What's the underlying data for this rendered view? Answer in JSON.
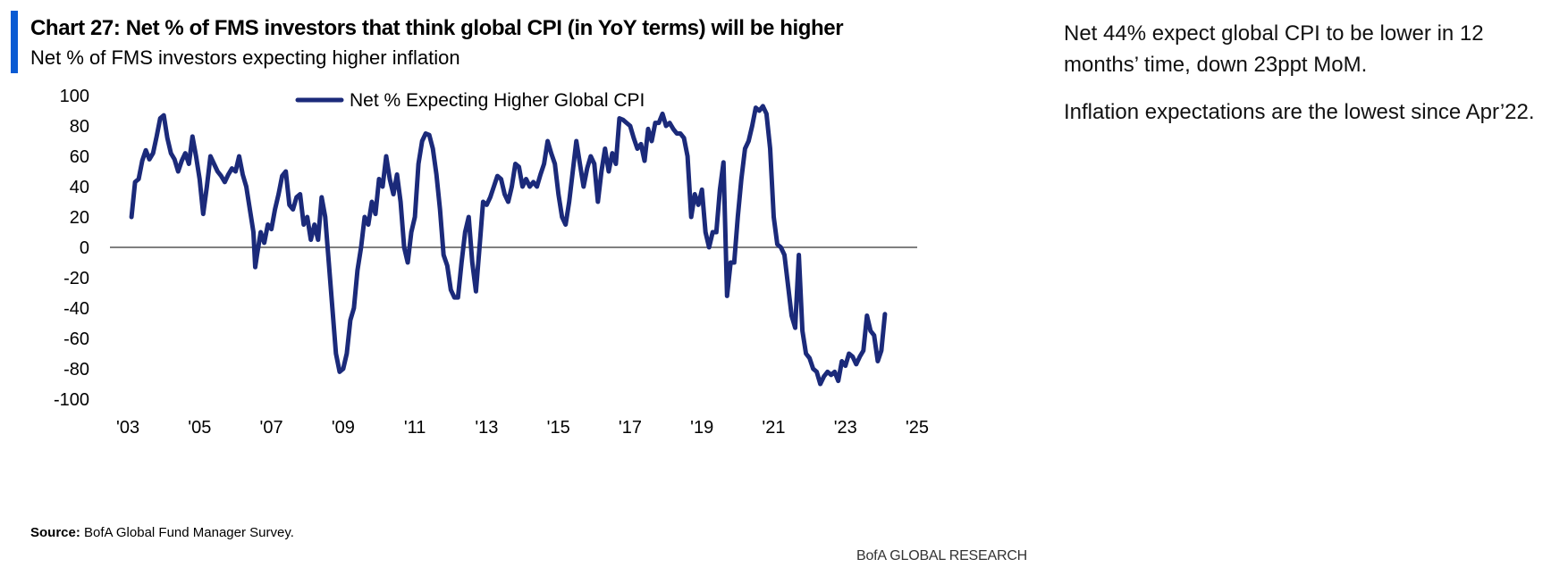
{
  "header": {
    "title": "Chart 27: Net % of FMS investors that think global CPI (in YoY terms) will be higher",
    "subtitle": "Net % of FMS investors expecting higher inflation"
  },
  "sidebar": {
    "paragraphs": [
      "Net 44% expect global CPI to be lower in 12 months’ time, down 23ppt MoM.",
      "Inflation expectations are the lowest since Apr’22."
    ]
  },
  "footer": {
    "source_label": "Source:",
    "source_text": " BofA Global Fund Manager Survey.",
    "brand": "BofA GLOBAL RESEARCH"
  },
  "colors": {
    "accent": "#0a5bd3",
    "series": "#1b2a7a",
    "zero_line": "#555555"
  },
  "chart_data": {
    "type": "line",
    "title": "",
    "xlabel": "",
    "ylabel": "",
    "xlim": [
      2003.0,
      2025.5
    ],
    "ylim": [
      -100,
      100
    ],
    "yticks": [
      100,
      80,
      60,
      40,
      20,
      0,
      -20,
      -40,
      -60,
      -80,
      -100
    ],
    "xticks": [
      {
        "value": 2003.5,
        "label": "'03"
      },
      {
        "value": 2005.5,
        "label": "'05"
      },
      {
        "value": 2007.5,
        "label": "'07"
      },
      {
        "value": 2009.5,
        "label": "'09"
      },
      {
        "value": 2011.5,
        "label": "'11"
      },
      {
        "value": 2013.5,
        "label": "'13"
      },
      {
        "value": 2015.5,
        "label": "'15"
      },
      {
        "value": 2017.5,
        "label": "'17"
      },
      {
        "value": 2019.5,
        "label": "'19"
      },
      {
        "value": 2021.5,
        "label": "'21"
      },
      {
        "value": 2023.5,
        "label": "'23"
      },
      {
        "value": 2025.5,
        "label": "'25"
      }
    ],
    "legend": "top-center",
    "grid": false,
    "series": [
      {
        "name": "Net % Expecting Higher Global CPI",
        "points": [
          [
            2003.6,
            20
          ],
          [
            2003.7,
            43
          ],
          [
            2003.8,
            45
          ],
          [
            2003.9,
            57
          ],
          [
            2004.0,
            64
          ],
          [
            2004.1,
            58
          ],
          [
            2004.2,
            62
          ],
          [
            2004.3,
            73
          ],
          [
            2004.4,
            85
          ],
          [
            2004.5,
            87
          ],
          [
            2004.6,
            72
          ],
          [
            2004.7,
            62
          ],
          [
            2004.8,
            58
          ],
          [
            2004.9,
            50
          ],
          [
            2005.0,
            57
          ],
          [
            2005.1,
            62
          ],
          [
            2005.2,
            55
          ],
          [
            2005.3,
            73
          ],
          [
            2005.4,
            60
          ],
          [
            2005.5,
            45
          ],
          [
            2005.6,
            22
          ],
          [
            2005.7,
            40
          ],
          [
            2005.8,
            60
          ],
          [
            2005.9,
            55
          ],
          [
            2006.0,
            50
          ],
          [
            2006.1,
            47
          ],
          [
            2006.2,
            43
          ],
          [
            2006.3,
            48
          ],
          [
            2006.4,
            52
          ],
          [
            2006.5,
            50
          ],
          [
            2006.6,
            60
          ],
          [
            2006.7,
            48
          ],
          [
            2006.8,
            40
          ],
          [
            2006.9,
            25
          ],
          [
            2007.0,
            10
          ],
          [
            2007.05,
            -13
          ],
          [
            2007.1,
            -5
          ],
          [
            2007.2,
            10
          ],
          [
            2007.3,
            3
          ],
          [
            2007.4,
            15
          ],
          [
            2007.5,
            12
          ],
          [
            2007.6,
            25
          ],
          [
            2007.7,
            35
          ],
          [
            2007.8,
            47
          ],
          [
            2007.9,
            50
          ],
          [
            2008.0,
            28
          ],
          [
            2008.1,
            25
          ],
          [
            2008.2,
            33
          ],
          [
            2008.3,
            35
          ],
          [
            2008.4,
            15
          ],
          [
            2008.5,
            20
          ],
          [
            2008.6,
            5
          ],
          [
            2008.7,
            15
          ],
          [
            2008.8,
            5
          ],
          [
            2008.9,
            33
          ],
          [
            2009.0,
            20
          ],
          [
            2009.1,
            -10
          ],
          [
            2009.2,
            -40
          ],
          [
            2009.3,
            -70
          ],
          [
            2009.4,
            -82
          ],
          [
            2009.5,
            -80
          ],
          [
            2009.6,
            -70
          ],
          [
            2009.7,
            -48
          ],
          [
            2009.8,
            -40
          ],
          [
            2009.9,
            -15
          ],
          [
            2010.0,
            0
          ],
          [
            2010.1,
            20
          ],
          [
            2010.2,
            15
          ],
          [
            2010.3,
            30
          ],
          [
            2010.4,
            22
          ],
          [
            2010.5,
            45
          ],
          [
            2010.6,
            40
          ],
          [
            2010.7,
            60
          ],
          [
            2010.8,
            45
          ],
          [
            2010.9,
            35
          ],
          [
            2011.0,
            48
          ],
          [
            2011.1,
            30
          ],
          [
            2011.2,
            0
          ],
          [
            2011.3,
            -10
          ],
          [
            2011.4,
            10
          ],
          [
            2011.5,
            20
          ],
          [
            2011.6,
            55
          ],
          [
            2011.7,
            70
          ],
          [
            2011.8,
            75
          ],
          [
            2011.9,
            74
          ],
          [
            2012.0,
            65
          ],
          [
            2012.1,
            48
          ],
          [
            2012.2,
            25
          ],
          [
            2012.3,
            -5
          ],
          [
            2012.4,
            -12
          ],
          [
            2012.5,
            -28
          ],
          [
            2012.6,
            -33
          ],
          [
            2012.7,
            -33
          ],
          [
            2012.8,
            -10
          ],
          [
            2012.9,
            10
          ],
          [
            2013.0,
            20
          ],
          [
            2013.1,
            -10
          ],
          [
            2013.2,
            -29
          ],
          [
            2013.3,
            0
          ],
          [
            2013.4,
            30
          ],
          [
            2013.5,
            28
          ],
          [
            2013.6,
            33
          ],
          [
            2013.7,
            40
          ],
          [
            2013.8,
            47
          ],
          [
            2013.9,
            45
          ],
          [
            2014.0,
            35
          ],
          [
            2014.1,
            30
          ],
          [
            2014.2,
            40
          ],
          [
            2014.3,
            55
          ],
          [
            2014.4,
            53
          ],
          [
            2014.5,
            40
          ],
          [
            2014.6,
            45
          ],
          [
            2014.7,
            40
          ],
          [
            2014.8,
            43
          ],
          [
            2014.9,
            40
          ],
          [
            2015.0,
            48
          ],
          [
            2015.1,
            55
          ],
          [
            2015.2,
            70
          ],
          [
            2015.3,
            62
          ],
          [
            2015.4,
            55
          ],
          [
            2015.5,
            35
          ],
          [
            2015.6,
            20
          ],
          [
            2015.7,
            15
          ],
          [
            2015.8,
            30
          ],
          [
            2015.9,
            50
          ],
          [
            2016.0,
            70
          ],
          [
            2016.1,
            55
          ],
          [
            2016.2,
            40
          ],
          [
            2016.3,
            52
          ],
          [
            2016.4,
            60
          ],
          [
            2016.5,
            55
          ],
          [
            2016.6,
            30
          ],
          [
            2016.7,
            50
          ],
          [
            2016.8,
            65
          ],
          [
            2016.9,
            50
          ],
          [
            2017.0,
            62
          ],
          [
            2017.1,
            55
          ],
          [
            2017.2,
            85
          ],
          [
            2017.3,
            84
          ],
          [
            2017.4,
            82
          ],
          [
            2017.5,
            80
          ],
          [
            2017.6,
            72
          ],
          [
            2017.7,
            65
          ],
          [
            2017.8,
            68
          ],
          [
            2017.9,
            57
          ],
          [
            2018.0,
            78
          ],
          [
            2018.1,
            70
          ],
          [
            2018.2,
            82
          ],
          [
            2018.3,
            82
          ],
          [
            2018.4,
            88
          ],
          [
            2018.5,
            80
          ],
          [
            2018.6,
            82
          ],
          [
            2018.7,
            78
          ],
          [
            2018.8,
            75
          ],
          [
            2018.9,
            75
          ],
          [
            2019.0,
            72
          ],
          [
            2019.1,
            60
          ],
          [
            2019.2,
            20
          ],
          [
            2019.3,
            35
          ],
          [
            2019.4,
            28
          ],
          [
            2019.5,
            38
          ],
          [
            2019.6,
            10
          ],
          [
            2019.7,
            0
          ],
          [
            2019.8,
            10
          ],
          [
            2019.9,
            10
          ],
          [
            2020.0,
            38
          ],
          [
            2020.1,
            56
          ],
          [
            2020.2,
            -32
          ],
          [
            2020.3,
            -10
          ],
          [
            2020.4,
            -10
          ],
          [
            2020.5,
            20
          ],
          [
            2020.6,
            45
          ],
          [
            2020.7,
            65
          ],
          [
            2020.8,
            70
          ],
          [
            2020.9,
            80
          ],
          [
            2021.0,
            92
          ],
          [
            2021.1,
            90
          ],
          [
            2021.2,
            93
          ],
          [
            2021.3,
            88
          ],
          [
            2021.4,
            65
          ],
          [
            2021.5,
            20
          ],
          [
            2021.6,
            2
          ],
          [
            2021.7,
            0
          ],
          [
            2021.8,
            -5
          ],
          [
            2021.9,
            -25
          ],
          [
            2022.0,
            -45
          ],
          [
            2022.1,
            -53
          ],
          [
            2022.2,
            -5
          ],
          [
            2022.3,
            -55
          ],
          [
            2022.4,
            -70
          ],
          [
            2022.5,
            -73
          ],
          [
            2022.6,
            -80
          ],
          [
            2022.7,
            -82
          ],
          [
            2022.8,
            -90
          ],
          [
            2022.9,
            -85
          ],
          [
            2023.0,
            -82
          ],
          [
            2023.1,
            -84
          ],
          [
            2023.2,
            -82
          ],
          [
            2023.3,
            -88
          ],
          [
            2023.4,
            -75
          ],
          [
            2023.5,
            -78
          ],
          [
            2023.6,
            -70
          ],
          [
            2023.7,
            -72
          ],
          [
            2023.8,
            -77
          ],
          [
            2023.9,
            -72
          ],
          [
            2024.0,
            -68
          ],
          [
            2024.1,
            -45
          ],
          [
            2024.2,
            -55
          ],
          [
            2024.3,
            -58
          ],
          [
            2024.4,
            -75
          ],
          [
            2024.5,
            -68
          ],
          [
            2024.6,
            -44
          ]
        ]
      }
    ]
  }
}
